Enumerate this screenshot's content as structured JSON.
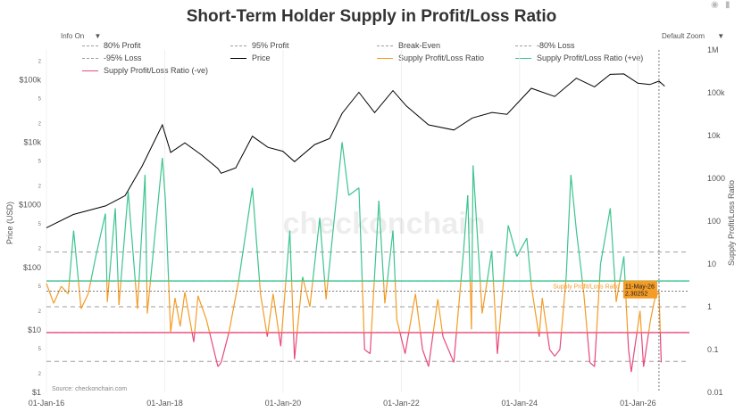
{
  "header": {
    "title": "Short-Term Holder Supply in Profit/Loss Ratio",
    "info_toggle": "Info On",
    "zoom_select": "Default Zoom"
  },
  "legend": [
    {
      "label": "80% Profit",
      "color": "#9e9e9e",
      "style": "dashed"
    },
    {
      "label": "95% Profit",
      "color": "#9e9e9e",
      "style": "dashed"
    },
    {
      "label": "Break-Even",
      "color": "#9e9e9e",
      "style": "dashed"
    },
    {
      "label": "-80% Loss",
      "color": "#9e9e9e",
      "style": "dashed"
    },
    {
      "label": "-95% Loss",
      "color": "#9e9e9e",
      "style": "dashed"
    },
    {
      "label": "Price",
      "color": "#000000",
      "style": "solid"
    },
    {
      "label": "Supply Profit/Loss Ratio",
      "color": "#f39c26",
      "style": "solid"
    },
    {
      "label": "Supply Profit/Loss Ratio (+ve)",
      "color": "#3cc48f",
      "style": "solid"
    },
    {
      "label": "Supply Profit/Loss Ratio (-ve)",
      "color": "#e8497a",
      "style": "solid"
    }
  ],
  "watermark": "checkonchain",
  "source": "Source: checkonchain.com",
  "hover": {
    "series_label": "Supply Profit/Loss Ratio",
    "date": "11-May-26",
    "value": "2.30252"
  },
  "chart_data": {
    "type": "line",
    "x_range": [
      "2016-01-01",
      "2026-11-15"
    ],
    "x_ticks": [
      "01-Jan-16",
      "01-Jan-18",
      "01-Jan-20",
      "01-Jan-22",
      "01-Jan-24",
      "01-Jan-26"
    ],
    "y_left": {
      "label": "Price (USD)",
      "scale": "log",
      "range": [
        1,
        300000
      ],
      "major_ticks": [
        {
          "v": 1,
          "l": "$1"
        },
        {
          "v": 10,
          "l": "$10"
        },
        {
          "v": 100,
          "l": "$100"
        },
        {
          "v": 1000,
          "l": "$1000"
        },
        {
          "v": 10000,
          "l": "$10k"
        },
        {
          "v": 100000,
          "l": "$100k"
        }
      ],
      "minor_ticks": [
        {
          "v": 2,
          "l": "2"
        },
        {
          "v": 5,
          "l": "5"
        },
        {
          "v": 20,
          "l": "2"
        },
        {
          "v": 50,
          "l": "5"
        },
        {
          "v": 200,
          "l": "2"
        },
        {
          "v": 500,
          "l": "5"
        },
        {
          "v": 2000,
          "l": "2"
        },
        {
          "v": 5000,
          "l": "5"
        },
        {
          "v": 20000,
          "l": "2"
        },
        {
          "v": 50000,
          "l": "5"
        },
        {
          "v": 200000,
          "l": "2"
        }
      ]
    },
    "y_right": {
      "label": "Supply Profit/Loss Ratio",
      "scale": "log",
      "range": [
        0.01,
        1000000
      ],
      "ticks": [
        {
          "v": 0.01,
          "l": "0.01"
        },
        {
          "v": 0.1,
          "l": "0.1"
        },
        {
          "v": 1,
          "l": "1"
        },
        {
          "v": 10,
          "l": "10"
        },
        {
          "v": 100,
          "l": "100"
        },
        {
          "v": 1000,
          "l": "1000"
        },
        {
          "v": 10000,
          "l": "10k"
        },
        {
          "v": 100000,
          "l": "100k"
        },
        {
          "v": 1000000,
          "l": "1M"
        }
      ]
    },
    "reference_lines": [
      {
        "name": "95% Profit",
        "value": 19,
        "color": "#9e9e9e",
        "style": "dashed"
      },
      {
        "name": "80% Profit",
        "value": 4,
        "color": "#9e9e9e",
        "style": "dashed"
      },
      {
        "name": "Break-Even",
        "value": 1,
        "color": "#9e9e9e",
        "style": "dashed"
      },
      {
        "name": "-80% Loss",
        "value": 0.25,
        "color": "#9e9e9e",
        "style": "dashed"
      },
      {
        "name": "-95% Loss",
        "value": 0.053,
        "color": "#9e9e9e",
        "style": "dashed"
      },
      {
        "name": "positive threshold",
        "value": 4,
        "color": "#3cc48f",
        "style": "solid"
      },
      {
        "name": "negative threshold",
        "value": 0.25,
        "color": "#e8497a",
        "style": "solid"
      }
    ],
    "series": [
      {
        "name": "Price",
        "axis": "left",
        "color": "#000000",
        "points": [
          [
            "2016-01-01",
            430
          ],
          [
            "2016-06-15",
            700
          ],
          [
            "2016-12-31",
            960
          ],
          [
            "2017-05-01",
            1400
          ],
          [
            "2017-08-15",
            4200
          ],
          [
            "2017-12-17",
            19000
          ],
          [
            "2018-02-06",
            6900
          ],
          [
            "2018-05-05",
            9800
          ],
          [
            "2018-08-15",
            6300
          ],
          [
            "2018-11-25",
            3800
          ],
          [
            "2018-12-15",
            3200
          ],
          [
            "2019-03-15",
            3900
          ],
          [
            "2019-06-26",
            12500
          ],
          [
            "2019-09-30",
            8300
          ],
          [
            "2019-12-31",
            7200
          ],
          [
            "2020-03-12",
            4900
          ],
          [
            "2020-07-15",
            9200
          ],
          [
            "2020-10-15",
            11500
          ],
          [
            "2020-12-31",
            29000
          ],
          [
            "2021-04-14",
            63000
          ],
          [
            "2021-07-20",
            29800
          ],
          [
            "2021-11-10",
            67000
          ],
          [
            "2022-02-01",
            38000
          ],
          [
            "2022-06-18",
            19000
          ],
          [
            "2022-11-21",
            15700
          ],
          [
            "2023-03-15",
            24500
          ],
          [
            "2023-07-15",
            30000
          ],
          [
            "2023-10-15",
            28000
          ],
          [
            "2024-03-14",
            73000
          ],
          [
            "2024-08-05",
            54000
          ],
          [
            "2024-12-17",
            106000
          ],
          [
            "2025-04-08",
            77000
          ],
          [
            "2025-07-14",
            122000
          ],
          [
            "2025-10-06",
            124000
          ],
          [
            "2025-12-31",
            88000
          ],
          [
            "2026-03-15",
            84000
          ],
          [
            "2026-05-11",
            95000
          ],
          [
            "2026-06-15",
            79000
          ]
        ]
      },
      {
        "name": "Supply Profit/Loss Ratio",
        "axis": "right",
        "color": "#f39c26",
        "points": [
          [
            "2016-01-01",
            3.5
          ],
          [
            "2016-02-15",
            1.2
          ],
          [
            "2016-04-01",
            3
          ],
          [
            "2016-05-15",
            2
          ],
          [
            "2016-06-17",
            60
          ],
          [
            "2016-08-02",
            0.9
          ],
          [
            "2016-09-15",
            2
          ],
          [
            "2016-11-01",
            15
          ],
          [
            "2016-12-30",
            150
          ],
          [
            "2017-01-11",
            1.3
          ],
          [
            "2017-03-01",
            200
          ],
          [
            "2017-03-24",
            1.1
          ],
          [
            "2017-05-20",
            500
          ],
          [
            "2017-07-16",
            0.9
          ],
          [
            "2017-09-01",
            1200
          ],
          [
            "2017-09-15",
            0.7
          ],
          [
            "2017-12-17",
            3000
          ],
          [
            "2018-01-05",
            300
          ],
          [
            "2018-02-06",
            0.25
          ],
          [
            "2018-03-05",
            1.6
          ],
          [
            "2018-04-06",
            0.35
          ],
          [
            "2018-05-05",
            2.2
          ],
          [
            "2018-06-29",
            0.15
          ],
          [
            "2018-07-25",
            1.8
          ],
          [
            "2018-09-15",
            0.5
          ],
          [
            "2018-11-25",
            0.04
          ],
          [
            "2018-12-15",
            0.05
          ],
          [
            "2019-02-01",
            0.25
          ],
          [
            "2019-04-02",
            4
          ],
          [
            "2019-06-26",
            600
          ],
          [
            "2019-08-15",
            2
          ],
          [
            "2019-09-26",
            0.2
          ],
          [
            "2019-11-01",
            2
          ],
          [
            "2019-12-18",
            0.12
          ],
          [
            "2020-02-12",
            60
          ],
          [
            "2020-03-12",
            0.06
          ],
          [
            "2020-05-01",
            5
          ],
          [
            "2020-06-15",
            1
          ],
          [
            "2020-08-15",
            120
          ],
          [
            "2020-09-23",
            1.5
          ],
          [
            "2020-12-31",
            7000
          ],
          [
            "2021-02-10",
            400
          ],
          [
            "2021-04-14",
            600
          ],
          [
            "2021-05-19",
            0.1
          ],
          [
            "2021-06-22",
            0.08
          ],
          [
            "2021-08-15",
            300
          ],
          [
            "2021-09-21",
            1.2
          ],
          [
            "2021-11-10",
            60
          ],
          [
            "2021-12-04",
            0.5
          ],
          [
            "2022-01-24",
            0.08
          ],
          [
            "2022-03-29",
            2
          ],
          [
            "2022-05-12",
            0.1
          ],
          [
            "2022-06-18",
            0.04
          ],
          [
            "2022-08-14",
            1.5
          ],
          [
            "2022-09-15",
            0.2
          ],
          [
            "2022-11-21",
            0.05
          ],
          [
            "2023-01-20",
            20
          ],
          [
            "2023-02-15",
            400
          ],
          [
            "2023-03-10",
            0.3
          ],
          [
            "2023-03-20",
            2000
          ],
          [
            "2023-05-15",
            0.7
          ],
          [
            "2023-07-13",
            20
          ],
          [
            "2023-08-17",
            0.08
          ],
          [
            "2023-10-23",
            80
          ],
          [
            "2023-12-15",
            15
          ],
          [
            "2024-02-15",
            40
          ],
          [
            "2024-03-14",
            3
          ],
          [
            "2024-05-01",
            0.2
          ],
          [
            "2024-05-20",
            1.6
          ],
          [
            "2024-07-05",
            0.1
          ],
          [
            "2024-08-05",
            0.07
          ],
          [
            "2024-09-06",
            0.1
          ],
          [
            "2024-10-15",
            5
          ],
          [
            "2024-11-13",
            1200
          ],
          [
            "2024-12-17",
            60
          ],
          [
            "2025-02-01",
            2
          ],
          [
            "2025-03-10",
            0.05
          ],
          [
            "2025-04-08",
            0.04
          ],
          [
            "2025-05-15",
            10
          ],
          [
            "2025-07-14",
            200
          ],
          [
            "2025-08-20",
            1.3
          ],
          [
            "2025-10-06",
            15
          ],
          [
            "2025-11-04",
            0.1
          ],
          [
            "2025-11-21",
            0.03
          ],
          [
            "2026-01-14",
            0.8
          ],
          [
            "2026-02-05",
            0.04
          ],
          [
            "2026-03-20",
            0.5
          ],
          [
            "2026-04-15",
            1.5
          ],
          [
            "2026-05-11",
            2.30252
          ],
          [
            "2026-05-25",
            0.05
          ]
        ]
      }
    ]
  }
}
